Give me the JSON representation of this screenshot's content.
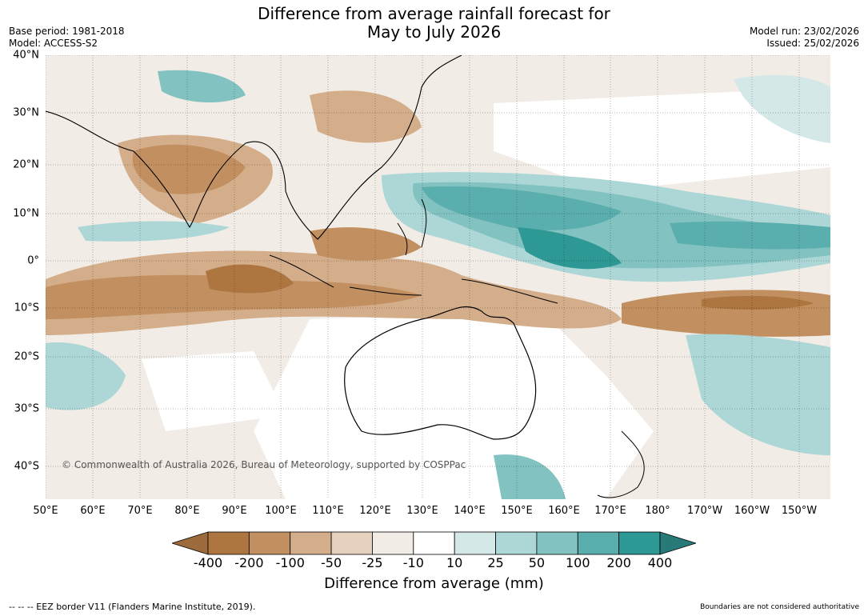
{
  "title_line1": "Difference from average rainfall forecast for",
  "title_line2": "May to July 2026",
  "meta_left": [
    "Base period: 1981-2018",
    "Model: ACCESS-S2"
  ],
  "meta_right": [
    "Model run: 23/02/2026",
    "Issued: 25/02/2026"
  ],
  "lat_labels": [
    "40°N",
    "30°N",
    "20°N",
    "10°N",
    "0°",
    "10°S",
    "20°S",
    "30°S",
    "40°S"
  ],
  "lon_labels": [
    "50°E",
    "60°E",
    "70°E",
    "80°E",
    "90°E",
    "100°E",
    "110°E",
    "120°E",
    "130°E",
    "140°E",
    "150°E",
    "160°E",
    "170°E",
    "180°",
    "170°W",
    "160°W",
    "150°W"
  ],
  "copyright": "© Commonwealth of Australia 2026, Bureau of Meteorology, supported by COSPPac",
  "colorbar": {
    "ticks": [
      "-400",
      "-200",
      "-100",
      "-50",
      "-25",
      "-10",
      "10",
      "25",
      "50",
      "100",
      "200",
      "400"
    ],
    "colors": [
      "#9c6a3c",
      "#ad7540",
      "#c28f60",
      "#d4ae8a",
      "#e5d1bd",
      "#f2ece6",
      "#ffffff",
      "#d5e8e8",
      "#acd7d6",
      "#82c2c0",
      "#5aaead",
      "#2e9894",
      "#277a78"
    ],
    "label": "Difference from average (mm)"
  },
  "footer_left": "--  --  -- EEZ border V11 (Flanders Marine Institute, 2019).",
  "footer_right": "Boundaries are not considered authoritative"
}
